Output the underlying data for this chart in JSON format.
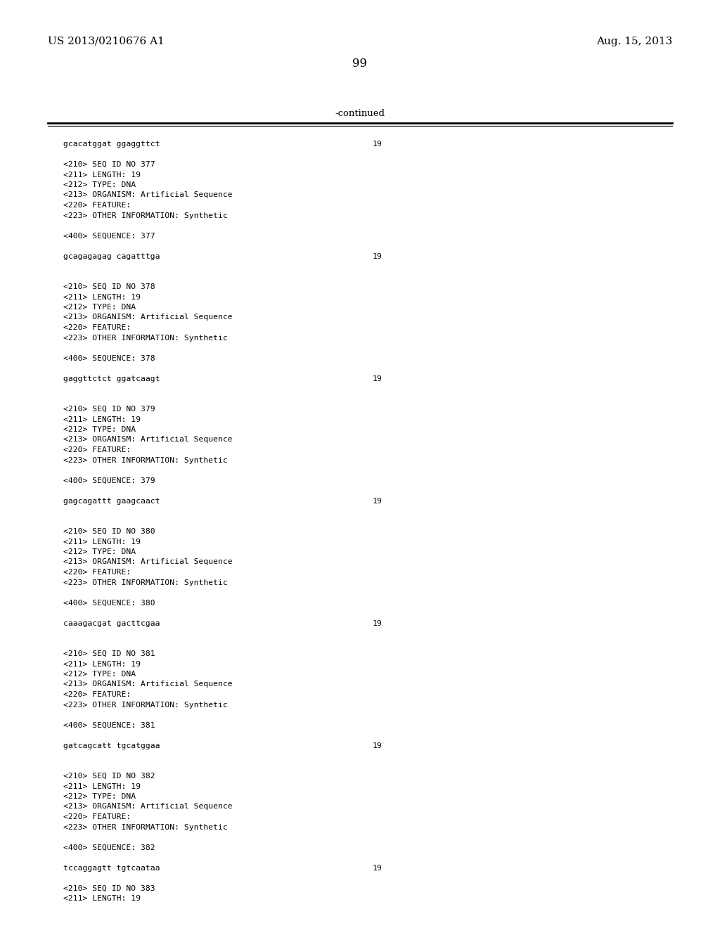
{
  "background_color": "#ffffff",
  "header_left": "US 2013/0210676 A1",
  "header_right": "Aug. 15, 2013",
  "page_number": "99",
  "continued_label": "-continued",
  "content_lines": [
    [
      "gcacatggat ggaggttct",
      "19"
    ],
    [
      "",
      ""
    ],
    [
      "<210> SEQ ID NO 377",
      ""
    ],
    [
      "<211> LENGTH: 19",
      ""
    ],
    [
      "<212> TYPE: DNA",
      ""
    ],
    [
      "<213> ORGANISM: Artificial Sequence",
      ""
    ],
    [
      "<220> FEATURE:",
      ""
    ],
    [
      "<223> OTHER INFORMATION: Synthetic",
      ""
    ],
    [
      "",
      ""
    ],
    [
      "<400> SEQUENCE: 377",
      ""
    ],
    [
      "",
      ""
    ],
    [
      "gcagagagag cagatttga",
      "19"
    ],
    [
      "",
      ""
    ],
    [
      "",
      ""
    ],
    [
      "<210> SEQ ID NO 378",
      ""
    ],
    [
      "<211> LENGTH: 19",
      ""
    ],
    [
      "<212> TYPE: DNA",
      ""
    ],
    [
      "<213> ORGANISM: Artificial Sequence",
      ""
    ],
    [
      "<220> FEATURE:",
      ""
    ],
    [
      "<223> OTHER INFORMATION: Synthetic",
      ""
    ],
    [
      "",
      ""
    ],
    [
      "<400> SEQUENCE: 378",
      ""
    ],
    [
      "",
      ""
    ],
    [
      "gaggttctct ggatcaagt",
      "19"
    ],
    [
      "",
      ""
    ],
    [
      "",
      ""
    ],
    [
      "<210> SEQ ID NO 379",
      ""
    ],
    [
      "<211> LENGTH: 19",
      ""
    ],
    [
      "<212> TYPE: DNA",
      ""
    ],
    [
      "<213> ORGANISM: Artificial Sequence",
      ""
    ],
    [
      "<220> FEATURE:",
      ""
    ],
    [
      "<223> OTHER INFORMATION: Synthetic",
      ""
    ],
    [
      "",
      ""
    ],
    [
      "<400> SEQUENCE: 379",
      ""
    ],
    [
      "",
      ""
    ],
    [
      "gagcagattt gaagcaact",
      "19"
    ],
    [
      "",
      ""
    ],
    [
      "",
      ""
    ],
    [
      "<210> SEQ ID NO 380",
      ""
    ],
    [
      "<211> LENGTH: 19",
      ""
    ],
    [
      "<212> TYPE: DNA",
      ""
    ],
    [
      "<213> ORGANISM: Artificial Sequence",
      ""
    ],
    [
      "<220> FEATURE:",
      ""
    ],
    [
      "<223> OTHER INFORMATION: Synthetic",
      ""
    ],
    [
      "",
      ""
    ],
    [
      "<400> SEQUENCE: 380",
      ""
    ],
    [
      "",
      ""
    ],
    [
      "caaagacgat gacttcgaa",
      "19"
    ],
    [
      "",
      ""
    ],
    [
      "",
      ""
    ],
    [
      "<210> SEQ ID NO 381",
      ""
    ],
    [
      "<211> LENGTH: 19",
      ""
    ],
    [
      "<212> TYPE: DNA",
      ""
    ],
    [
      "<213> ORGANISM: Artificial Sequence",
      ""
    ],
    [
      "<220> FEATURE:",
      ""
    ],
    [
      "<223> OTHER INFORMATION: Synthetic",
      ""
    ],
    [
      "",
      ""
    ],
    [
      "<400> SEQUENCE: 381",
      ""
    ],
    [
      "",
      ""
    ],
    [
      "gatcagcatt tgcatggaa",
      "19"
    ],
    [
      "",
      ""
    ],
    [
      "",
      ""
    ],
    [
      "<210> SEQ ID NO 382",
      ""
    ],
    [
      "<211> LENGTH: 19",
      ""
    ],
    [
      "<212> TYPE: DNA",
      ""
    ],
    [
      "<213> ORGANISM: Artificial Sequence",
      ""
    ],
    [
      "<220> FEATURE:",
      ""
    ],
    [
      "<223> OTHER INFORMATION: Synthetic",
      ""
    ],
    [
      "",
      ""
    ],
    [
      "<400> SEQUENCE: 382",
      ""
    ],
    [
      "",
      ""
    ],
    [
      "tccaggagtt tgtcaataa",
      "19"
    ],
    [
      "",
      ""
    ],
    [
      "<210> SEQ ID NO 383",
      ""
    ],
    [
      "<211> LENGTH: 19",
      ""
    ]
  ]
}
